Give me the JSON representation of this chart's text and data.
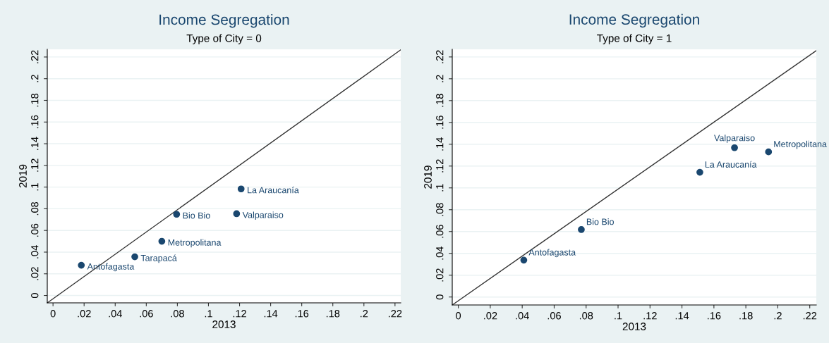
{
  "chart_data": [
    {
      "type": "scatter",
      "title": "Income Segregation",
      "subtitle": "Type of City = 0",
      "xlabel": "2013",
      "ylabel": "2019",
      "x": [
        0.0182,
        0.0526,
        0.07,
        0.0795,
        0.1181,
        0.121
      ],
      "series": [
        {
          "color": "#1a476f",
          "marker": "circle",
          "values": [
            0.0279,
            0.0357,
            0.05,
            0.0749,
            0.0754,
            0.0983
          ]
        },
        {
          "type": "line",
          "color": "#333333",
          "line_style": "solid",
          "marker": "none",
          "x": [
            -0.0037,
            0.2237
          ],
          "values": [
            -0.0068,
            0.2266
          ]
        }
      ],
      "annotations": [
        {
          "text": "Antofagasta",
          "x": 0.0182,
          "y": 0.0279
        },
        {
          "text": "Tarapacá",
          "x": 0.0526,
          "y": 0.0357
        },
        {
          "text": "Metropolitana",
          "x": 0.07,
          "y": 0.05
        },
        {
          "text": "Bio Bio",
          "x": 0.0795,
          "y": 0.0749
        },
        {
          "text": "Valparaiso",
          "x": 0.1181,
          "y": 0.0754
        },
        {
          "text": "La Araucanía",
          "x": 0.121,
          "y": 0.0983
        }
      ],
      "xlim": [
        -0.0037,
        0.2237
      ],
      "ylim": [
        -0.0068,
        0.2271
      ],
      "xticks": [
        0,
        {
          "value": 0.02,
          "label": ".02"
        },
        {
          "value": 0.04,
          "label": ".04"
        },
        {
          "value": 0.06,
          "label": ".06"
        },
        {
          "value": 0.08,
          "label": ".08"
        },
        {
          "value": 0.1,
          "label": ".1"
        },
        {
          "value": 0.12,
          "label": ".12"
        },
        {
          "value": 0.14,
          "label": ".14"
        },
        {
          "value": 0.16,
          "label": ".16"
        },
        {
          "value": 0.18,
          "label": ".18"
        },
        {
          "value": 0.2,
          "label": ".2"
        },
        {
          "value": 0.22,
          "label": ".22"
        }
      ],
      "yticks": [
        0,
        {
          "value": 0.02,
          "label": ".02"
        },
        {
          "value": 0.04,
          "label": ".04"
        },
        {
          "value": 0.06,
          "label": ".06"
        },
        {
          "value": 0.08,
          "label": ".08"
        },
        {
          "value": 0.1,
          "label": ".1"
        },
        {
          "value": 0.12,
          "label": ".12"
        },
        {
          "value": 0.14,
          "label": ".14"
        },
        {
          "value": 0.16,
          "label": ".16"
        },
        {
          "value": 0.18,
          "label": ".18"
        },
        {
          "value": 0.2,
          "label": ".2"
        },
        {
          "value": 0.22,
          "label": ".22"
        }
      ],
      "grid": "y"
    },
    {
      "type": "scatter",
      "title": "Income Segregation",
      "subtitle": "Type of City = 1",
      "xlabel": "2013",
      "ylabel": "2019",
      "x": [
        0.041,
        0.077,
        0.1512,
        0.1729,
        0.1942
      ],
      "series": [
        {
          "color": "#1a476f",
          "marker": "circle",
          "values": [
            0.0338,
            0.0618,
            0.1143,
            0.1368,
            0.133
          ]
        },
        {
          "type": "line",
          "color": "#333333",
          "line_style": "solid",
          "marker": "none",
          "x": [
            -0.0038,
            0.2241
          ],
          "values": [
            -0.0073,
            0.2258
          ]
        }
      ],
      "annotations": [
        {
          "text": "Antofagasta",
          "x": 0.041,
          "y": 0.0338
        },
        {
          "text": "Bio Bio",
          "x": 0.077,
          "y": 0.0618
        },
        {
          "text": "La Araucanía",
          "x": 0.1512,
          "y": 0.1143
        },
        {
          "text": "Valparaiso",
          "x": 0.1729,
          "y": 0.1368
        },
        {
          "text": "Metropolitana",
          "x": 0.1942,
          "y": 0.133
        }
      ],
      "xlim": [
        -0.0038,
        0.2241
      ],
      "ylim": [
        -0.0073,
        0.227
      ],
      "xticks": [
        0,
        {
          "value": 0.02,
          "label": ".02"
        },
        {
          "value": 0.04,
          "label": ".04"
        },
        {
          "value": 0.06,
          "label": ".06"
        },
        {
          "value": 0.08,
          "label": ".08"
        },
        {
          "value": 0.1,
          "label": ".1"
        },
        {
          "value": 0.12,
          "label": ".12"
        },
        {
          "value": 0.14,
          "label": ".14"
        },
        {
          "value": 0.16,
          "label": ".16"
        },
        {
          "value": 0.18,
          "label": ".18"
        },
        {
          "value": 0.2,
          "label": ".2"
        },
        {
          "value": 0.22,
          "label": ".22"
        }
      ],
      "yticks": [
        0,
        {
          "value": 0.02,
          "label": ".02"
        },
        {
          "value": 0.04,
          "label": ".04"
        },
        {
          "value": 0.06,
          "label": ".06"
        },
        {
          "value": 0.08,
          "label": ".08"
        },
        {
          "value": 0.1,
          "label": ".1"
        },
        {
          "value": 0.12,
          "label": ".12"
        },
        {
          "value": 0.14,
          "label": ".14"
        },
        {
          "value": 0.16,
          "label": ".16"
        },
        {
          "value": 0.18,
          "label": ".18"
        },
        {
          "value": 0.2,
          "label": ".2"
        },
        {
          "value": 0.22,
          "label": ".22"
        }
      ],
      "grid": "y"
    }
  ]
}
